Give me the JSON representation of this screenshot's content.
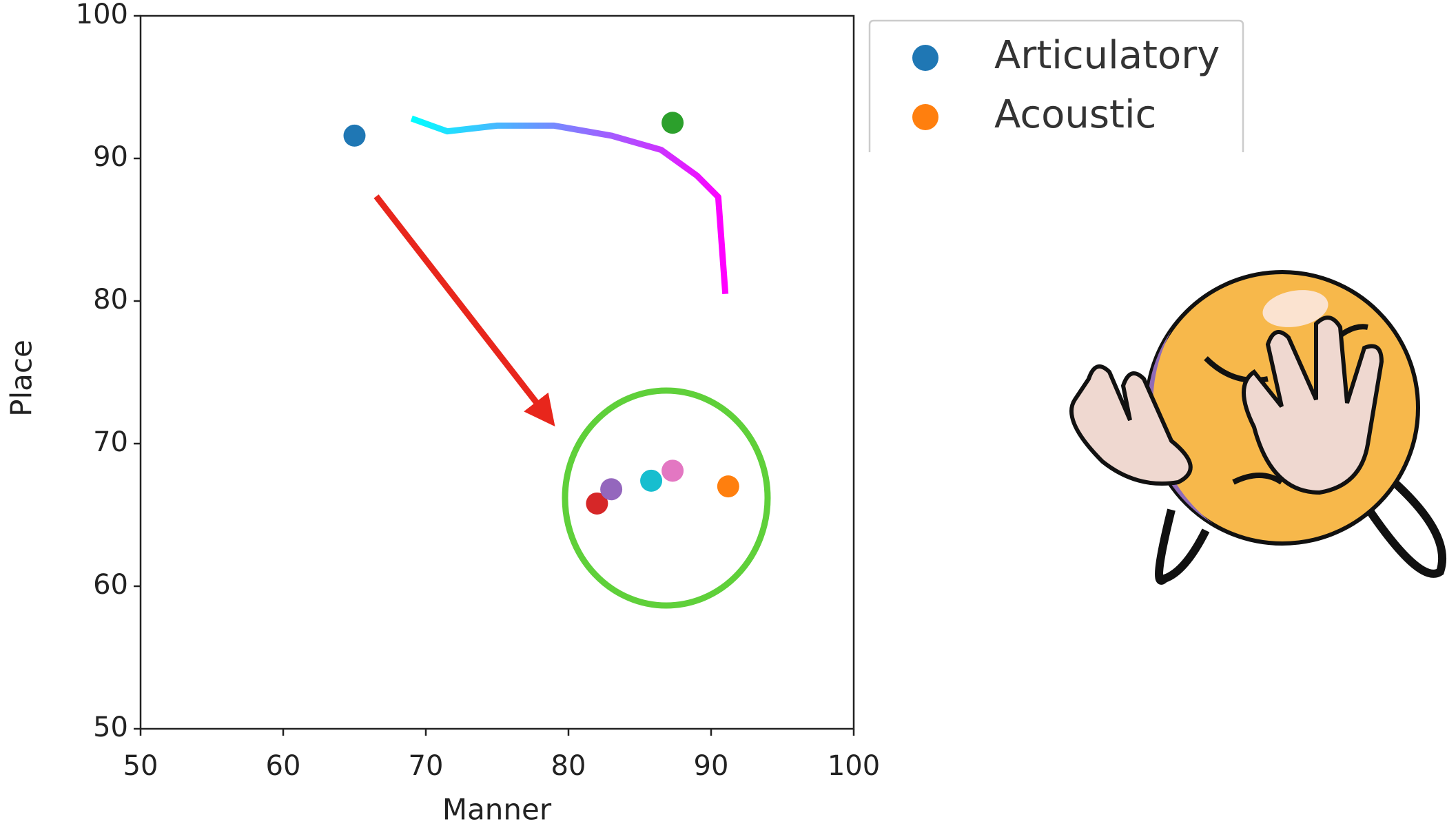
{
  "chart_data": {
    "type": "scatter",
    "x_label": "Manner",
    "y_label": "Place",
    "xlim": [
      50,
      100
    ],
    "ylim": [
      50,
      100
    ],
    "xticks": [
      50,
      60,
      70,
      80,
      90,
      100
    ],
    "yticks": [
      50,
      60,
      70,
      80,
      90,
      100
    ],
    "legend": "right",
    "series": [
      {
        "type": "line",
        "colors": [
          "#00ffff",
          "#ff00ff"
        ],
        "x": [
          69,
          71.5,
          75,
          79,
          83,
          86.5,
          89,
          90.5,
          91
        ],
        "values": [
          92.8,
          91.9,
          92.3,
          92.3,
          91.6,
          90.6,
          88.8,
          87.3,
          80.5
        ]
      },
      {
        "name": "Articulatory",
        "color": "#1f77b4",
        "x": [
          65
        ],
        "values": [
          91.6
        ]
      },
      {
        "name": "Acoustic",
        "color": "#ff7f0e",
        "x": [
          91.2
        ],
        "values": [
          67
        ]
      },
      {
        "color": "#2ca02c",
        "x": [
          87.3
        ],
        "values": [
          92.5
        ]
      },
      {
        "color": "#d62728",
        "x": [
          82
        ],
        "values": [
          65.8
        ]
      },
      {
        "color": "#9467bd",
        "x": [
          83
        ],
        "values": [
          66.8
        ]
      },
      {
        "color": "#17becf",
        "x": [
          85.8
        ],
        "values": [
          67.4
        ]
      },
      {
        "color": "#e377c2",
        "x": [
          87.3
        ],
        "values": [
          68.1
        ]
      }
    ]
  }
}
